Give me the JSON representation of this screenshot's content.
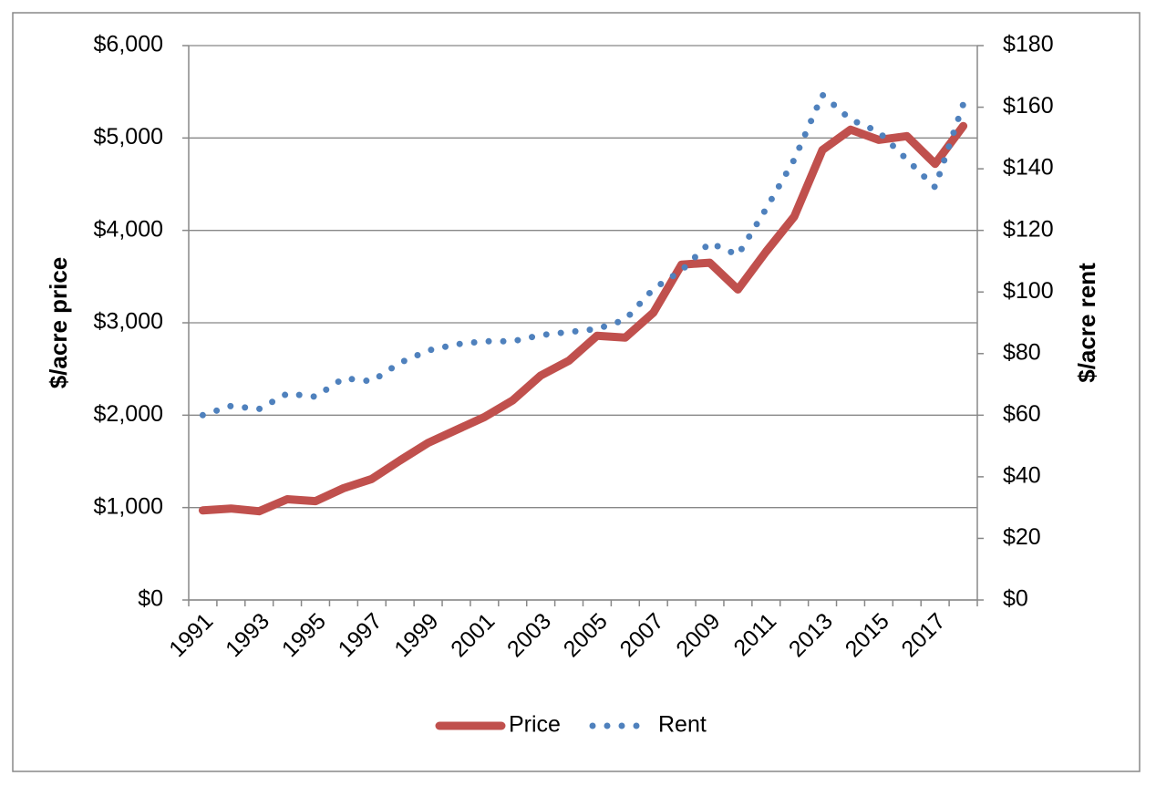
{
  "chart_data": {
    "type": "line",
    "categories": [
      "1991",
      null,
      "1993",
      null,
      "1995",
      null,
      "1997",
      null,
      "1999",
      null,
      "2001",
      null,
      "2003",
      null,
      "2005",
      null,
      "2007",
      null,
      "2009",
      null,
      "2011",
      null,
      "2013",
      null,
      "2015",
      null,
      "2017",
      null
    ],
    "series": [
      {
        "name": "Price",
        "color": "#c0504d",
        "axis": "y",
        "style": "solid",
        "values": [
          970,
          990,
          960,
          1090,
          1070,
          1210,
          1310,
          1510,
          1700,
          1840,
          1980,
          2160,
          2430,
          2590,
          2860,
          2840,
          3110,
          3630,
          3650,
          3360,
          3770,
          4150,
          4870,
          5090,
          4980,
          5020,
          4720,
          5130
        ]
      },
      {
        "name": "Rent",
        "color": "#4f81bd",
        "axis": "y2",
        "style": "dotted",
        "values": [
          60,
          63,
          62,
          67,
          66,
          72,
          71,
          77,
          81,
          83,
          84,
          84,
          86,
          87,
          88,
          91,
          101,
          107,
          116,
          112,
          127,
          143,
          164,
          156,
          152,
          143,
          134,
          161
        ]
      }
    ],
    "ylabel": "$/acre price",
    "y2label": "$/acre rent",
    "ylim": [
      0,
      6000
    ],
    "yticks": [
      {
        "value": 0,
        "label": "$0"
      },
      {
        "value": 1000,
        "label": "$1,000"
      },
      {
        "value": 2000,
        "label": "$2,000"
      },
      {
        "value": 3000,
        "label": "$3,000"
      },
      {
        "value": 4000,
        "label": "$4,000"
      },
      {
        "value": 5000,
        "label": "$5,000"
      },
      {
        "value": 6000,
        "label": "$6,000"
      }
    ],
    "y2lim": [
      0,
      180
    ],
    "y2ticks": [
      {
        "value": 0,
        "label": "$0"
      },
      {
        "value": 20,
        "label": "$20"
      },
      {
        "value": 40,
        "label": "$40"
      },
      {
        "value": 60,
        "label": "$60"
      },
      {
        "value": 80,
        "label": "$80"
      },
      {
        "value": 100,
        "label": "$100"
      },
      {
        "value": 120,
        "label": "$120"
      },
      {
        "value": 140,
        "label": "$140"
      },
      {
        "value": 160,
        "label": "$160"
      },
      {
        "value": 180,
        "label": "$180"
      }
    ],
    "grid": true,
    "legend": "bottom"
  }
}
